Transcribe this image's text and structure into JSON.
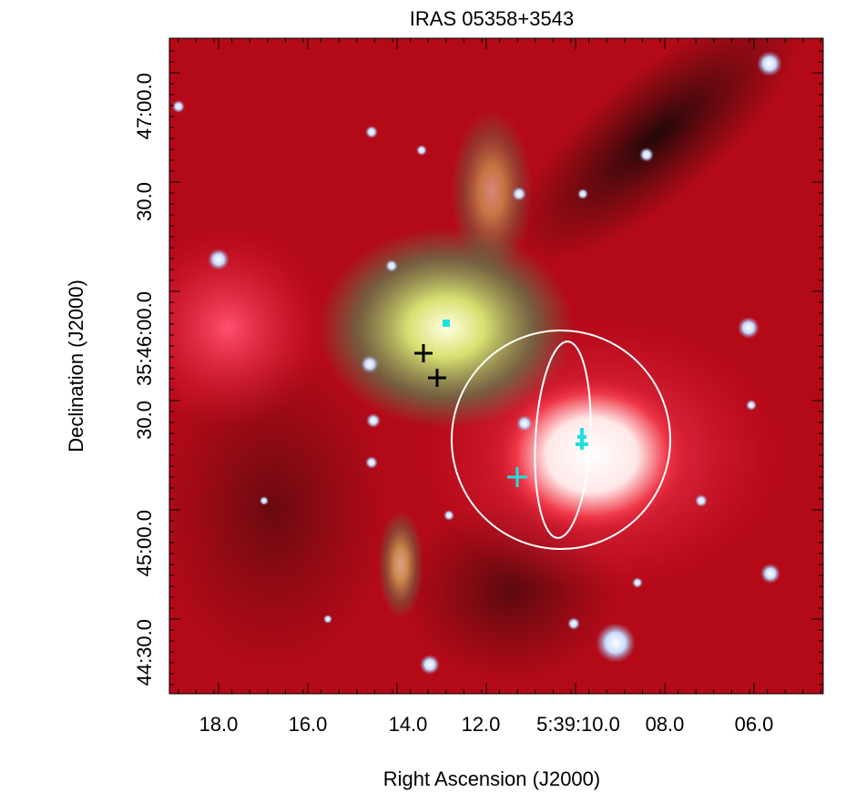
{
  "title": "IRAS 05358+3543",
  "x_axis": {
    "label": "Right Ascension (J2000)",
    "ticks": [
      "18.0",
      "16.0",
      "14.0",
      "12.0",
      "5:39:10.0",
      "08.0",
      "06.0"
    ]
  },
  "y_axis": {
    "label": "Declination (J2000)",
    "ticks": [
      "47:00.0",
      "30.0",
      "35:46:00.0",
      "30.0",
      "45:00.0",
      "44:30.0"
    ]
  }
}
